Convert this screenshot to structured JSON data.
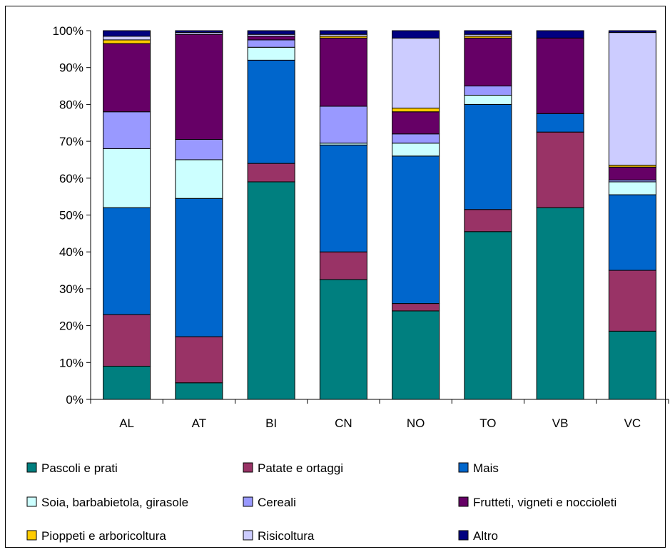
{
  "chart_data": {
    "type": "bar",
    "stacked": true,
    "normalized": true,
    "title": "",
    "xlabel": "",
    "ylabel": "",
    "ylim": [
      0,
      100
    ],
    "ytick_labels": [
      "0%",
      "10%",
      "20%",
      "30%",
      "40%",
      "50%",
      "60%",
      "70%",
      "80%",
      "90%",
      "100%"
    ],
    "grid": false,
    "legend_position": "bottom",
    "categories": [
      "AL",
      "AT",
      "BI",
      "CN",
      "NO",
      "TO",
      "VB",
      "VC"
    ],
    "series": [
      {
        "name": "Pascoli e prati",
        "color": "#007F7F",
        "values": [
          9,
          4.5,
          59,
          32.5,
          24,
          45.5,
          52,
          18.5
        ]
      },
      {
        "name": "Patate e ortaggi",
        "color": "#993366",
        "values": [
          14,
          12.5,
          5,
          7.5,
          2,
          6,
          20.5,
          16.5
        ]
      },
      {
        "name": "Mais",
        "color": "#0066CC",
        "values": [
          29,
          37.5,
          28,
          29,
          40,
          28.5,
          5,
          20.5
        ]
      },
      {
        "name": "Soia, barbabietola, girasole",
        "color": "#CCFFFF",
        "values": [
          16,
          10.5,
          3.5,
          0.5,
          3.5,
          2.5,
          0,
          3.5
        ]
      },
      {
        "name": "Cereali",
        "color": "#9999FF",
        "values": [
          10,
          5.5,
          2,
          10,
          2.5,
          2.5,
          0,
          0.5
        ]
      },
      {
        "name": "Frutteti, vigneti e noccioleti",
        "color": "#660066",
        "values": [
          18.5,
          28.5,
          1,
          18.5,
          6,
          13,
          20.5,
          3.5
        ]
      },
      {
        "name": "Pioppeti e arboricoltura",
        "color": "#FFCC00",
        "values": [
          1,
          0,
          0,
          0.5,
          1,
          0.5,
          0,
          0.5
        ]
      },
      {
        "name": "Risicoltura",
        "color": "#CCCCFF",
        "values": [
          1,
          0.5,
          0.5,
          0.5,
          19,
          0.5,
          0,
          36
        ]
      },
      {
        "name": "Altro",
        "color": "#000080",
        "values": [
          1.5,
          0.5,
          1,
          1,
          2,
          1,
          2,
          0.5
        ]
      }
    ]
  }
}
